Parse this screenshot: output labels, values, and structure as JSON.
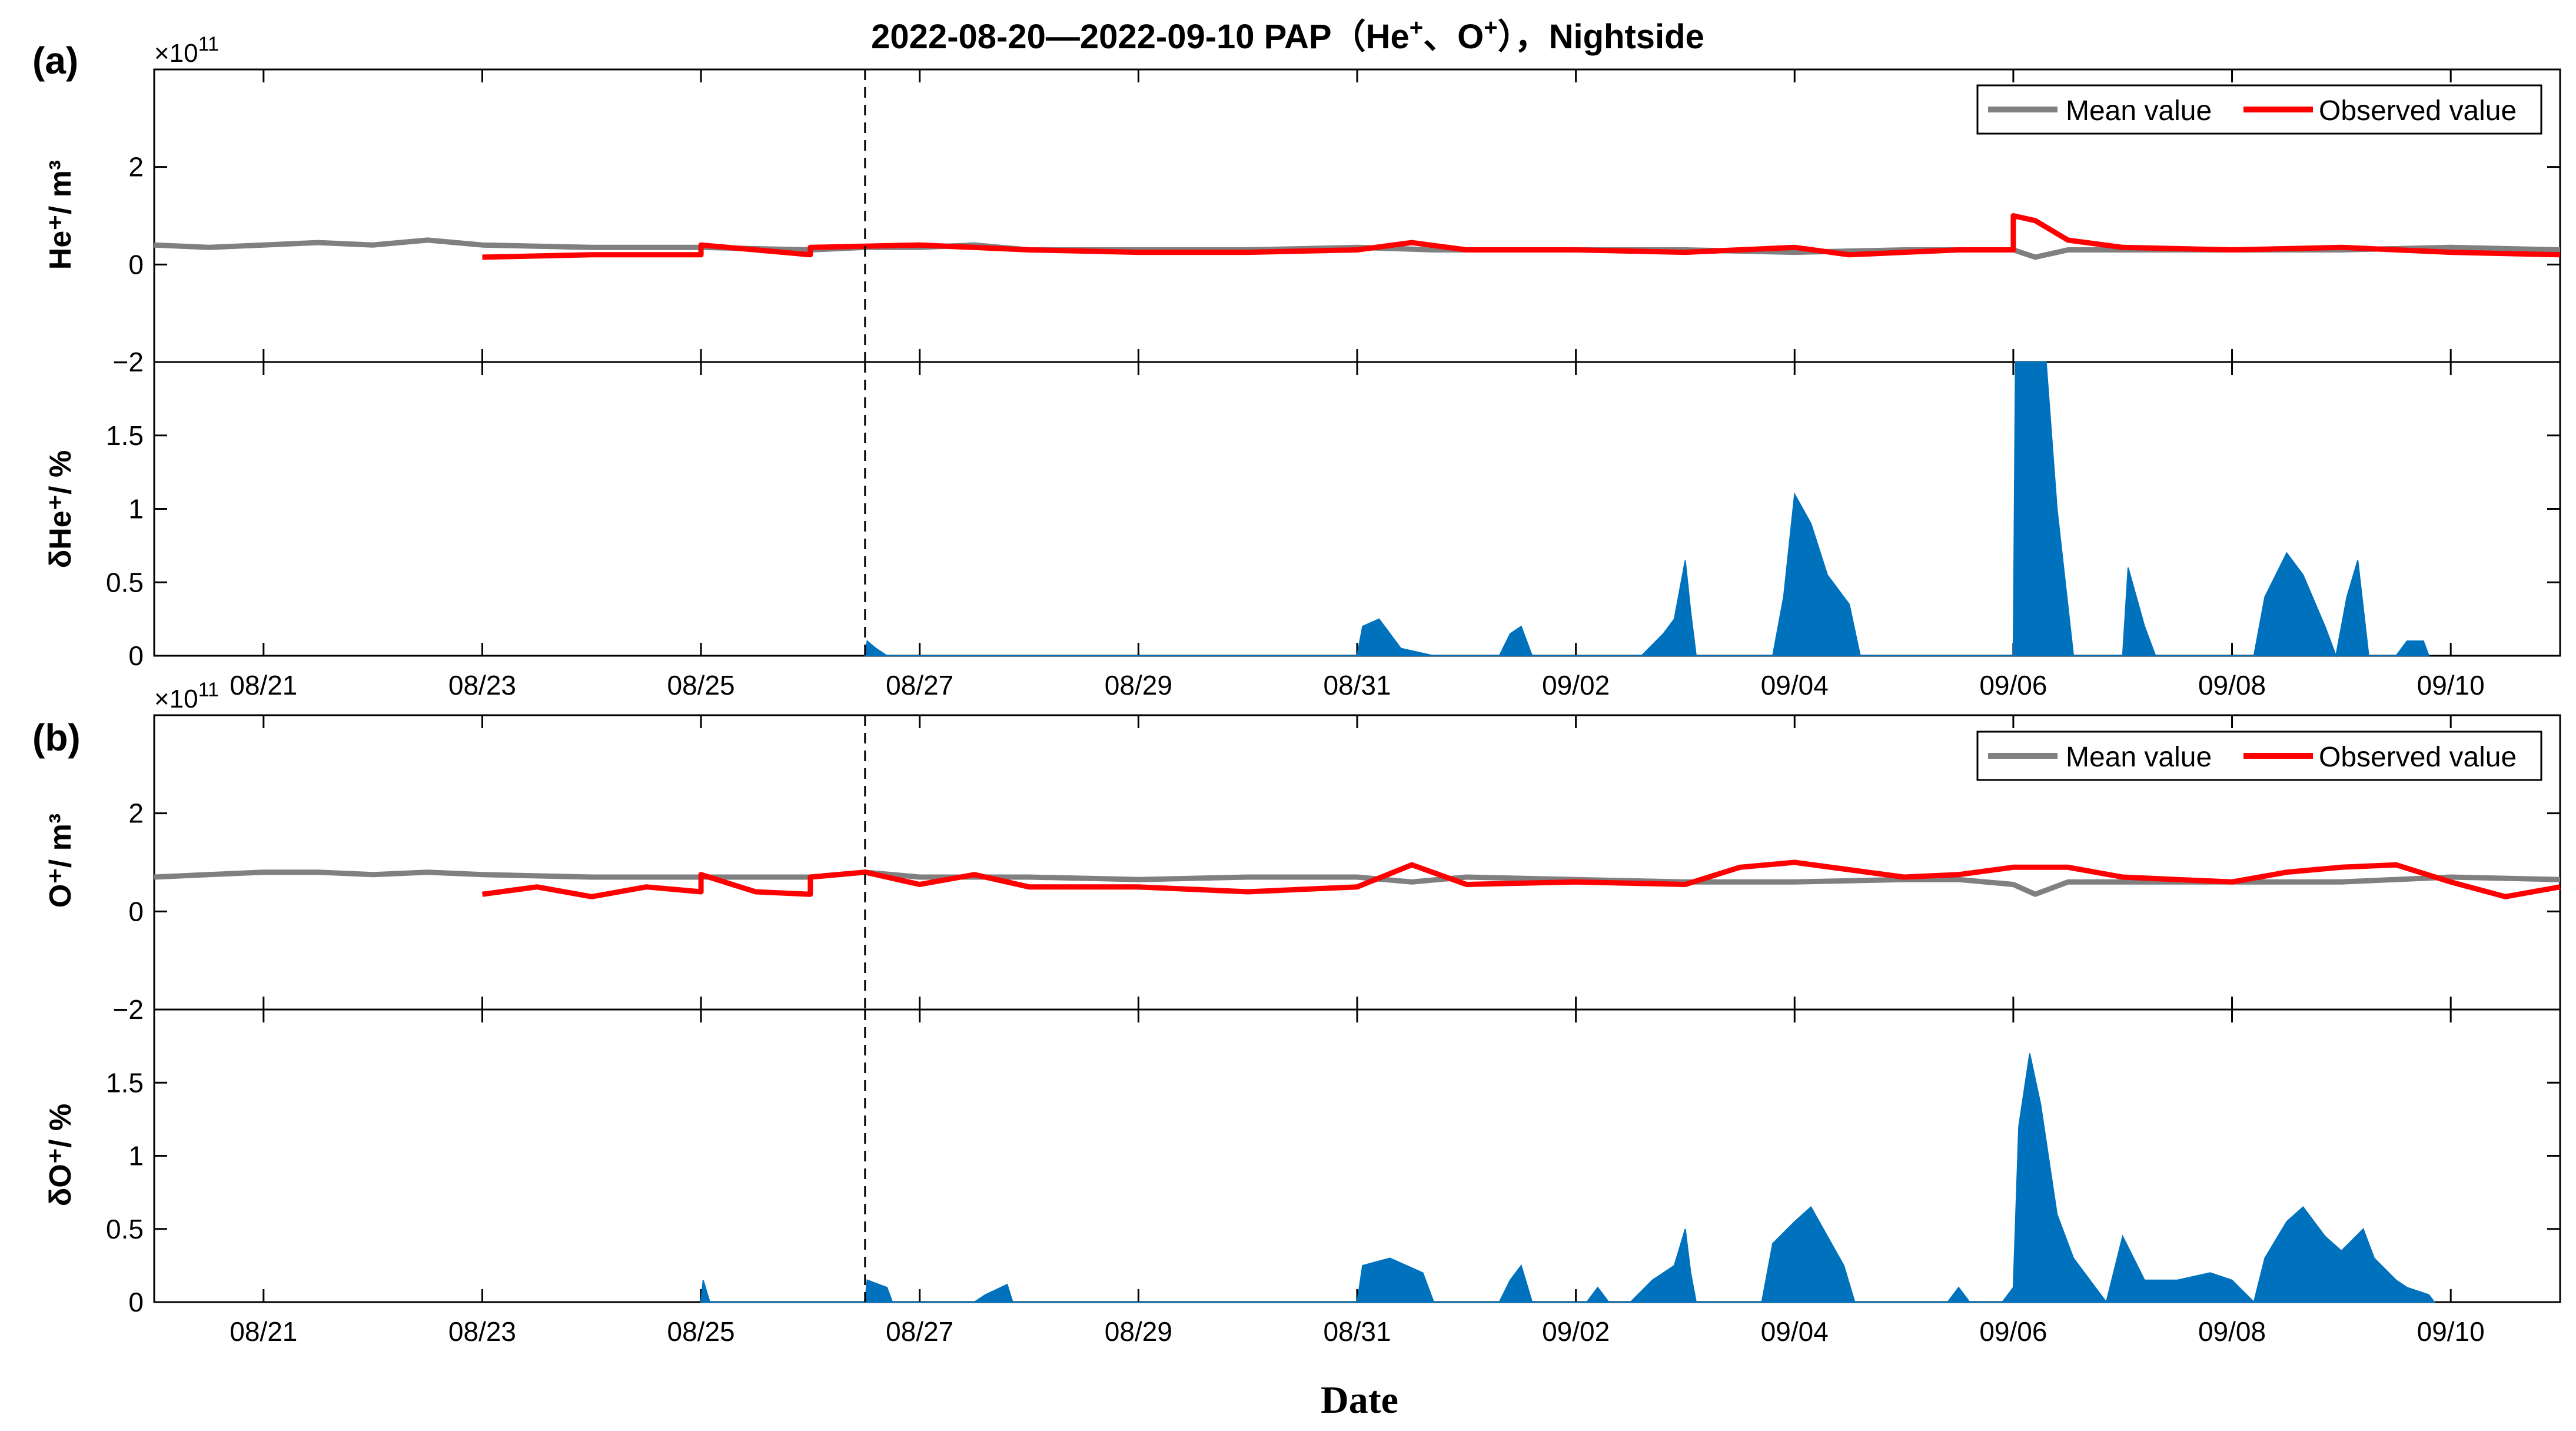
{
  "figure": {
    "title_main": "2022-08-20—2022-09-10   PAP（He",
    "title_sup1": "+",
    "title_mid": "、O",
    "title_sup2": "+",
    "title_end": "），Nightside",
    "xlabel": "Date",
    "x_range": [
      "2022-08-20",
      "2022-09-11"
    ],
    "x_ticks": [
      "08/21",
      "08/23",
      "08/25",
      "08/27",
      "08/29",
      "08/31",
      "09/02",
      "09/04",
      "09/06",
      "09/08",
      "09/10"
    ],
    "event_date": "2022-08-26 12:00",
    "colors": {
      "mean": "#808080",
      "observed": "#ff0000",
      "deviation": "#0072bd",
      "axis": "#000000"
    }
  },
  "panels": [
    {
      "label": "(a)",
      "exponent_base": "×10",
      "exponent_power": "11",
      "density_ylabel": "He⁺/ m³",
      "deviation_ylabel": "δHe⁺/ %",
      "density_ticks": [
        "−2",
        "0",
        "2"
      ],
      "deviation_ticks": [
        "0",
        "0.5",
        "1",
        "1.5"
      ]
    },
    {
      "label": "(b)",
      "exponent_base": "×10",
      "exponent_power": "11",
      "density_ylabel": "O⁺/ m³",
      "deviation_ylabel": "δO⁺/ %",
      "density_ticks": [
        "−2",
        "0",
        "2"
      ],
      "deviation_ticks": [
        "0",
        "0.5",
        "1",
        "1.5"
      ]
    }
  ],
  "legend": {
    "mean_label": "Mean value",
    "observed_label": "Observed value"
  },
  "chart_data": [
    {
      "type": "line",
      "title": "2022-08-20—2022-09-10   PAP（He⁺、O⁺），Nightside",
      "ylabel": "He⁺/ m³",
      "y_unit_multiplier": "×10^11",
      "ylim": [
        -2,
        4
      ],
      "x_unit": "days since 2022-08-20 00:00 (x-axis ticks at 08/21 … 09/10)",
      "series": [
        {
          "name": "Mean value",
          "points": [
            [
              0,
              0.4
            ],
            [
              0.5,
              0.35
            ],
            [
              1,
              0.4
            ],
            [
              1.5,
              0.45
            ],
            [
              2,
              0.4
            ],
            [
              2.5,
              0.5
            ],
            [
              3,
              0.4
            ],
            [
              4,
              0.35
            ],
            [
              5,
              0.35
            ],
            [
              6,
              0.3
            ],
            [
              6.5,
              0.35
            ],
            [
              7,
              0.35
            ],
            [
              7.5,
              0.4
            ],
            [
              8,
              0.3
            ],
            [
              9,
              0.3
            ],
            [
              10,
              0.3
            ],
            [
              11,
              0.35
            ],
            [
              11.7,
              0.3
            ],
            [
              12,
              0.3
            ],
            [
              13,
              0.3
            ],
            [
              14,
              0.3
            ],
            [
              15,
              0.25
            ],
            [
              16,
              0.3
            ],
            [
              16.5,
              0.3
            ],
            [
              17,
              0.3
            ],
            [
              17.2,
              0.15
            ],
            [
              17.5,
              0.3
            ],
            [
              18,
              0.3
            ],
            [
              19,
              0.3
            ],
            [
              20,
              0.3
            ],
            [
              21,
              0.35
            ],
            [
              22,
              0.3
            ]
          ]
        },
        {
          "name": "Observed value",
          "points": [
            [
              3,
              0.15
            ],
            [
              4,
              0.2
            ],
            [
              5,
              0.2
            ],
            [
              5,
              0.4
            ],
            [
              6,
              0.2
            ],
            [
              6,
              0.35
            ],
            [
              7,
              0.4
            ],
            [
              8,
              0.3
            ],
            [
              9,
              0.25
            ],
            [
              10,
              0.25
            ],
            [
              11,
              0.3
            ],
            [
              11.5,
              0.45
            ],
            [
              12,
              0.3
            ],
            [
              13,
              0.3
            ],
            [
              14,
              0.25
            ],
            [
              15,
              0.35
            ],
            [
              15.5,
              0.2
            ],
            [
              16,
              0.25
            ],
            [
              16.5,
              0.3
            ],
            [
              17,
              0.3
            ],
            [
              17,
              1.0
            ],
            [
              17.2,
              0.9
            ],
            [
              17.5,
              0.5
            ],
            [
              18,
              0.35
            ],
            [
              19,
              0.3
            ],
            [
              20,
              0.35
            ],
            [
              21,
              0.25
            ],
            [
              22,
              0.2
            ]
          ]
        }
      ]
    },
    {
      "type": "area",
      "ylabel": "δHe⁺/ %",
      "ylim": [
        0,
        2
      ],
      "x_unit": "days since 2022-08-20 00:00",
      "series": [
        {
          "name": "",
          "points": [
            [
              6.5,
              0
            ],
            [
              6.52,
              0.1
            ],
            [
              6.6,
              0.05
            ],
            [
              6.7,
              0
            ],
            [
              11,
              0
            ],
            [
              11.05,
              0.2
            ],
            [
              11.2,
              0.25
            ],
            [
              11.4,
              0.05
            ],
            [
              11.7,
              0
            ],
            [
              12.3,
              0
            ],
            [
              12.4,
              0.15
            ],
            [
              12.5,
              0.2
            ],
            [
              12.6,
              0
            ],
            [
              13.6,
              0
            ],
            [
              13.8,
              0.15
            ],
            [
              13.9,
              0.25
            ],
            [
              14,
              0.65
            ],
            [
              14.05,
              0.3
            ],
            [
              14.1,
              0
            ],
            [
              14.8,
              0
            ],
            [
              14.9,
              0.4
            ],
            [
              15,
              1.1
            ],
            [
              15.15,
              0.9
            ],
            [
              15.3,
              0.55
            ],
            [
              15.5,
              0.35
            ],
            [
              15.6,
              0
            ],
            [
              17,
              0
            ],
            [
              17.02,
              2.0
            ],
            [
              17.3,
              2.0
            ],
            [
              17.4,
              1.0
            ],
            [
              17.55,
              0
            ],
            [
              18,
              0
            ],
            [
              18.05,
              0.6
            ],
            [
              18.2,
              0.2
            ],
            [
              18.3,
              0
            ],
            [
              19.2,
              0
            ],
            [
              19.3,
              0.4
            ],
            [
              19.5,
              0.7
            ],
            [
              19.65,
              0.55
            ],
            [
              19.85,
              0.2
            ],
            [
              19.95,
              0
            ],
            [
              20.05,
              0.4
            ],
            [
              20.15,
              0.65
            ],
            [
              20.25,
              0
            ],
            [
              20.5,
              0
            ],
            [
              20.6,
              0.1
            ],
            [
              20.75,
              0.1
            ],
            [
              20.8,
              0
            ]
          ]
        }
      ]
    },
    {
      "type": "line",
      "ylabel": "O⁺/ m³",
      "y_unit_multiplier": "×10^11",
      "ylim": [
        -2,
        4
      ],
      "x_unit": "days since 2022-08-20 00:00",
      "series": [
        {
          "name": "Mean value",
          "points": [
            [
              0,
              0.7
            ],
            [
              0.5,
              0.75
            ],
            [
              1,
              0.8
            ],
            [
              1.5,
              0.8
            ],
            [
              2,
              0.75
            ],
            [
              2.5,
              0.8
            ],
            [
              3,
              0.75
            ],
            [
              4,
              0.7
            ],
            [
              5,
              0.7
            ],
            [
              6,
              0.7
            ],
            [
              6.5,
              0.8
            ],
            [
              7,
              0.7
            ],
            [
              8,
              0.7
            ],
            [
              9,
              0.65
            ],
            [
              10,
              0.7
            ],
            [
              11,
              0.7
            ],
            [
              11.5,
              0.6
            ],
            [
              12,
              0.7
            ],
            [
              13,
              0.65
            ],
            [
              14,
              0.6
            ],
            [
              15,
              0.6
            ],
            [
              16,
              0.65
            ],
            [
              16.5,
              0.65
            ],
            [
              17,
              0.55
            ],
            [
              17.2,
              0.35
            ],
            [
              17.5,
              0.6
            ],
            [
              18,
              0.6
            ],
            [
              19,
              0.6
            ],
            [
              20,
              0.6
            ],
            [
              21,
              0.7
            ],
            [
              22,
              0.65
            ]
          ]
        },
        {
          "name": "Observed value",
          "points": [
            [
              3,
              0.35
            ],
            [
              3.5,
              0.5
            ],
            [
              4,
              0.3
            ],
            [
              4.5,
              0.5
            ],
            [
              5,
              0.4
            ],
            [
              5,
              0.75
            ],
            [
              5.5,
              0.4
            ],
            [
              6,
              0.35
            ],
            [
              6,
              0.7
            ],
            [
              6.5,
              0.8
            ],
            [
              7,
              0.55
            ],
            [
              7.5,
              0.75
            ],
            [
              8,
              0.5
            ],
            [
              9,
              0.5
            ],
            [
              10,
              0.4
            ],
            [
              11,
              0.5
            ],
            [
              11.5,
              0.95
            ],
            [
              12,
              0.55
            ],
            [
              13,
              0.6
            ],
            [
              14,
              0.55
            ],
            [
              14.5,
              0.9
            ],
            [
              15,
              1.0
            ],
            [
              15.5,
              0.85
            ],
            [
              16,
              0.7
            ],
            [
              16.5,
              0.75
            ],
            [
              17,
              0.9
            ],
            [
              17.5,
              0.9
            ],
            [
              18,
              0.7
            ],
            [
              18.5,
              0.65
            ],
            [
              19,
              0.6
            ],
            [
              19.5,
              0.8
            ],
            [
              20,
              0.9
            ],
            [
              20.5,
              0.95
            ],
            [
              21,
              0.6
            ],
            [
              21.5,
              0.3
            ],
            [
              22,
              0.5
            ]
          ]
        }
      ]
    },
    {
      "type": "area",
      "ylabel": "δO⁺/ %",
      "ylim": [
        0,
        2
      ],
      "x_unit": "days since 2022-08-20 00:00",
      "series": [
        {
          "name": "",
          "points": [
            [
              5,
              0
            ],
            [
              5.02,
              0.15
            ],
            [
              5.08,
              0
            ],
            [
              6.5,
              0
            ],
            [
              6.52,
              0.15
            ],
            [
              6.7,
              0.1
            ],
            [
              6.75,
              0
            ],
            [
              7.5,
              0
            ],
            [
              7.6,
              0.05
            ],
            [
              7.8,
              0.12
            ],
            [
              7.85,
              0
            ],
            [
              11,
              0
            ],
            [
              11.05,
              0.25
            ],
            [
              11.3,
              0.3
            ],
            [
              11.6,
              0.2
            ],
            [
              11.7,
              0
            ],
            [
              12.3,
              0
            ],
            [
              12.4,
              0.15
            ],
            [
              12.5,
              0.25
            ],
            [
              12.6,
              0
            ],
            [
              13.1,
              0
            ],
            [
              13.2,
              0.1
            ],
            [
              13.3,
              0
            ],
            [
              13.5,
              0
            ],
            [
              13.7,
              0.15
            ],
            [
              13.9,
              0.25
            ],
            [
              14,
              0.5
            ],
            [
              14.05,
              0.2
            ],
            [
              14.1,
              0
            ],
            [
              14.7,
              0
            ],
            [
              14.8,
              0.4
            ],
            [
              15,
              0.55
            ],
            [
              15.15,
              0.65
            ],
            [
              15.3,
              0.45
            ],
            [
              15.45,
              0.25
            ],
            [
              15.55,
              0
            ],
            [
              16.4,
              0
            ],
            [
              16.5,
              0.1
            ],
            [
              16.6,
              0
            ],
            [
              16.9,
              0
            ],
            [
              17,
              0.1
            ],
            [
              17.05,
              1.2
            ],
            [
              17.15,
              1.7
            ],
            [
              17.25,
              1.35
            ],
            [
              17.4,
              0.6
            ],
            [
              17.55,
              0.3
            ],
            [
              17.7,
              0.15
            ],
            [
              17.85,
              0
            ],
            [
              18,
              0.45
            ],
            [
              18.1,
              0.3
            ],
            [
              18.2,
              0.15
            ],
            [
              18.5,
              0.15
            ],
            [
              18.8,
              0.2
            ],
            [
              19.0,
              0.15
            ],
            [
              19.2,
              0
            ],
            [
              19.3,
              0.3
            ],
            [
              19.5,
              0.55
            ],
            [
              19.65,
              0.65
            ],
            [
              19.85,
              0.45
            ],
            [
              20.0,
              0.35
            ],
            [
              20.2,
              0.5
            ],
            [
              20.3,
              0.3
            ],
            [
              20.5,
              0.15
            ],
            [
              20.6,
              0.1
            ],
            [
              20.8,
              0.05
            ],
            [
              20.85,
              0
            ]
          ]
        }
      ]
    }
  ]
}
